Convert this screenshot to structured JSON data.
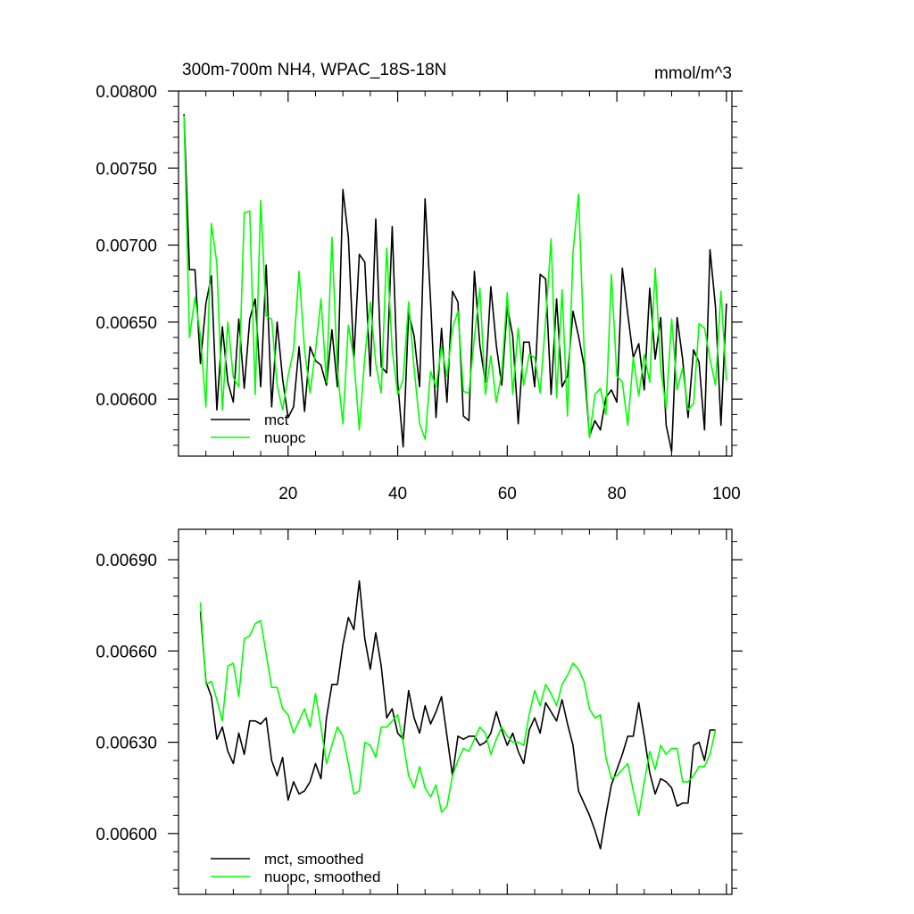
{
  "chart_data": [
    {
      "type": "line",
      "title": "300m-700m NH4, WPAC_18S-18N",
      "units": "mmol/m^3",
      "xlim": [
        0,
        101
      ],
      "ylim": [
        0.00563,
        0.008
      ],
      "xticks": [
        20,
        40,
        60,
        80,
        100
      ],
      "xtick_labels": [
        "20",
        "40",
        "60",
        "80",
        "100"
      ],
      "yticks": [
        0.006,
        0.0065,
        0.007,
        0.0075,
        0.008
      ],
      "ytick_labels": [
        "0.00600",
        "0.00650",
        "0.00700",
        "0.00750",
        "0.00800"
      ],
      "legend_position": "bottom-left",
      "series": [
        {
          "name": "mct",
          "color": "#000000",
          "x": [
            1,
            2,
            3,
            4,
            5,
            6,
            7,
            8,
            9,
            10,
            11,
            12,
            13,
            14,
            15,
            16,
            17,
            18,
            19,
            20,
            21,
            22,
            23,
            24,
            25,
            26,
            27,
            28,
            29,
            30,
            31,
            32,
            33,
            34,
            35,
            36,
            37,
            38,
            39,
            40,
            41,
            42,
            43,
            44,
            45,
            46,
            47,
            48,
            49,
            50,
            51,
            52,
            53,
            54,
            55,
            56,
            57,
            58,
            59,
            60,
            61,
            62,
            63,
            64,
            65,
            66,
            67,
            68,
            69,
            70,
            71,
            72,
            73,
            74,
            75,
            76,
            77,
            78,
            79,
            80,
            81,
            82,
            83,
            84,
            85,
            86,
            87,
            88,
            89,
            90,
            91,
            92,
            93,
            94,
            95,
            96,
            97,
            98,
            99,
            100
          ],
          "values": [
            0.00785,
            0.00684,
            0.00684,
            0.00623,
            0.00662,
            0.0068,
            0.00593,
            0.00647,
            0.00611,
            0.00598,
            0.00652,
            0.00607,
            0.00652,
            0.00665,
            0.00608,
            0.00687,
            0.00595,
            0.0065,
            0.00613,
            0.00588,
            0.00595,
            0.00634,
            0.00592,
            0.00634,
            0.00625,
            0.00622,
            0.00609,
            0.00645,
            0.00608,
            0.00736,
            0.00705,
            0.00626,
            0.00694,
            0.00689,
            0.00615,
            0.00717,
            0.00621,
            0.00617,
            0.00712,
            0.00611,
            0.00569,
            0.00656,
            0.00641,
            0.00608,
            0.0073,
            0.00664,
            0.00588,
            0.00646,
            0.00598,
            0.0067,
            0.00663,
            0.00589,
            0.00586,
            0.00683,
            0.00635,
            0.00611,
            0.00673,
            0.00635,
            0.00609,
            0.0066,
            0.00641,
            0.00584,
            0.00637,
            0.00637,
            0.00608,
            0.00681,
            0.00678,
            0.00603,
            0.00665,
            0.00608,
            0.00615,
            0.00657,
            0.00641,
            0.00622,
            0.00576,
            0.00586,
            0.0058,
            0.00601,
            0.00606,
            0.00598,
            0.00685,
            0.00655,
            0.00627,
            0.00636,
            0.00606,
            0.00672,
            0.00626,
            0.00653,
            0.00583,
            0.00566,
            0.00653,
            0.00626,
            0.00588,
            0.00632,
            0.00624,
            0.0058,
            0.00697,
            0.0066,
            0.00583,
            0.00662
          ]
        },
        {
          "name": "nuopc",
          "color": "#00ff00",
          "x": [
            1,
            2,
            3,
            4,
            5,
            6,
            7,
            8,
            9,
            10,
            11,
            12,
            13,
            14,
            15,
            16,
            17,
            18,
            19,
            20,
            21,
            22,
            23,
            24,
            25,
            26,
            27,
            28,
            29,
            30,
            31,
            32,
            33,
            34,
            35,
            36,
            37,
            38,
            39,
            40,
            41,
            42,
            43,
            44,
            45,
            46,
            47,
            48,
            49,
            50,
            51,
            52,
            53,
            54,
            55,
            56,
            57,
            58,
            59,
            60,
            61,
            62,
            63,
            64,
            65,
            66,
            67,
            68,
            69,
            70,
            71,
            72,
            73,
            74,
            75,
            76,
            77,
            78,
            79,
            80,
            81,
            82,
            83,
            84,
            85,
            86,
            87,
            88,
            89,
            90,
            91,
            92,
            93,
            94,
            95,
            96,
            97,
            98,
            99,
            100
          ],
          "values": [
            0.00784,
            0.0064,
            0.00666,
            0.00641,
            0.00595,
            0.00714,
            0.00688,
            0.00593,
            0.0065,
            0.00614,
            0.00608,
            0.00721,
            0.00722,
            0.00603,
            0.00729,
            0.00654,
            0.00652,
            0.00609,
            0.00593,
            0.00615,
            0.00632,
            0.00683,
            0.00632,
            0.00604,
            0.00631,
            0.00665,
            0.00611,
            0.00705,
            0.00618,
            0.00584,
            0.00648,
            0.00626,
            0.0058,
            0.00627,
            0.00663,
            0.00623,
            0.00604,
            0.00698,
            0.00632,
            0.00603,
            0.00613,
            0.00663,
            0.0062,
            0.00584,
            0.00574,
            0.00618,
            0.00608,
            0.00634,
            0.00615,
            0.00646,
            0.00657,
            0.00605,
            0.00604,
            0.0064,
            0.00672,
            0.00603,
            0.00628,
            0.00598,
            0.00617,
            0.00669,
            0.00603,
            0.00646,
            0.00609,
            0.00629,
            0.00627,
            0.00604,
            0.00651,
            0.00704,
            0.00601,
            0.00671,
            0.00589,
            0.00695,
            0.00733,
            0.00634,
            0.00575,
            0.00603,
            0.00607,
            0.0059,
            0.00681,
            0.00615,
            0.00611,
            0.00583,
            0.00627,
            0.00602,
            0.00629,
            0.00611,
            0.00685,
            0.0062,
            0.00594,
            0.00652,
            0.00606,
            0.0062,
            0.00593,
            0.00597,
            0.00649,
            0.00646,
            0.00626,
            0.00609,
            0.0067,
            0.00612
          ]
        }
      ]
    },
    {
      "type": "line",
      "title": "",
      "xlim": [
        0,
        101
      ],
      "ylim": [
        0.0058,
        0.007
      ],
      "xticks": [
        20,
        40,
        60,
        80,
        100
      ],
      "yticks": [
        0.006,
        0.0063,
        0.0066,
        0.0069
      ],
      "ytick_labels": [
        "0.00600",
        "0.00630",
        "0.00660",
        "0.00690"
      ],
      "legend_position": "bottom-left",
      "series": [
        {
          "name": "mct, smoothed",
          "color": "#000000",
          "x": [
            4,
            5,
            6,
            7,
            8,
            9,
            10,
            11,
            12,
            13,
            14,
            15,
            16,
            17,
            18,
            19,
            20,
            21,
            22,
            23,
            24,
            25,
            26,
            27,
            28,
            29,
            30,
            31,
            32,
            33,
            34,
            35,
            36,
            37,
            38,
            39,
            40,
            41,
            42,
            43,
            44,
            45,
            46,
            47,
            48,
            49,
            50,
            51,
            52,
            53,
            54,
            55,
            56,
            57,
            58,
            59,
            60,
            61,
            62,
            63,
            64,
            65,
            66,
            67,
            68,
            69,
            70,
            71,
            72,
            73,
            74,
            75,
            76,
            77,
            78,
            79,
            80,
            81,
            82,
            83,
            84,
            85,
            86,
            87,
            88,
            89,
            90,
            91,
            92,
            93,
            94,
            95,
            96,
            97,
            98
          ],
          "values": [
            0.00673,
            0.0065,
            0.00645,
            0.00631,
            0.00635,
            0.00627,
            0.00623,
            0.00633,
            0.00626,
            0.00637,
            0.00637,
            0.00636,
            0.00638,
            0.00624,
            0.00619,
            0.00625,
            0.00611,
            0.00617,
            0.00613,
            0.00614,
            0.00617,
            0.00623,
            0.00618,
            0.00638,
            0.00649,
            0.00649,
            0.00662,
            0.00671,
            0.00667,
            0.00683,
            0.00664,
            0.00654,
            0.00666,
            0.00655,
            0.00638,
            0.00641,
            0.00633,
            0.00631,
            0.00647,
            0.00638,
            0.00633,
            0.00642,
            0.00636,
            0.0064,
            0.00645,
            0.00632,
            0.00619,
            0.00632,
            0.00631,
            0.00632,
            0.00632,
            0.00629,
            0.0063,
            0.00633,
            0.0064,
            0.00634,
            0.00629,
            0.00633,
            0.00627,
            0.00623,
            0.00634,
            0.00638,
            0.00633,
            0.00643,
            0.0064,
            0.00637,
            0.00644,
            0.00636,
            0.00629,
            0.00614,
            0.0061,
            0.00606,
            0.00601,
            0.00595,
            0.00606,
            0.00616,
            0.00621,
            0.00626,
            0.00632,
            0.00632,
            0.00643,
            0.00632,
            0.0062,
            0.00613,
            0.00618,
            0.00617,
            0.00615,
            0.00609,
            0.0061,
            0.0061,
            0.00629,
            0.0063,
            0.00624,
            0.00634,
            0.00634
          ]
        },
        {
          "name": "nuopc, smoothed",
          "color": "#00ff00",
          "x": [
            4,
            5,
            6,
            7,
            8,
            9,
            10,
            11,
            12,
            13,
            14,
            15,
            16,
            17,
            18,
            19,
            20,
            21,
            22,
            23,
            24,
            25,
            26,
            27,
            28,
            29,
            30,
            31,
            32,
            33,
            34,
            35,
            36,
            37,
            38,
            39,
            40,
            41,
            42,
            43,
            44,
            45,
            46,
            47,
            48,
            49,
            50,
            51,
            52,
            53,
            54,
            55,
            56,
            57,
            58,
            59,
            60,
            61,
            62,
            63,
            64,
            65,
            66,
            67,
            68,
            69,
            70,
            71,
            72,
            73,
            74,
            75,
            76,
            77,
            78,
            79,
            80,
            81,
            82,
            83,
            84,
            85,
            86,
            87,
            88,
            89,
            90,
            91,
            92,
            93,
            94,
            95,
            96,
            97,
            98
          ],
          "values": [
            0.00676,
            0.00649,
            0.0065,
            0.00644,
            0.00637,
            0.00655,
            0.00656,
            0.00645,
            0.00664,
            0.00665,
            0.00669,
            0.0067,
            0.00659,
            0.00648,
            0.00648,
            0.00641,
            0.00639,
            0.00633,
            0.00637,
            0.00641,
            0.00635,
            0.00646,
            0.00635,
            0.00623,
            0.00629,
            0.00635,
            0.00632,
            0.00623,
            0.00613,
            0.00614,
            0.0063,
            0.00629,
            0.00625,
            0.00635,
            0.00635,
            0.00637,
            0.00639,
            0.0063,
            0.00619,
            0.00615,
            0.00622,
            0.00615,
            0.00612,
            0.00616,
            0.00607,
            0.00609,
            0.00619,
            0.00624,
            0.00628,
            0.00627,
            0.00631,
            0.00635,
            0.00633,
            0.00626,
            0.00631,
            0.00635,
            0.00632,
            0.0063,
            0.0063,
            0.00629,
            0.00639,
            0.00647,
            0.00642,
            0.00649,
            0.00646,
            0.00642,
            0.00649,
            0.00652,
            0.00656,
            0.00654,
            0.0065,
            0.00641,
            0.00638,
            0.00639,
            0.00625,
            0.00618,
            0.00619,
            0.00621,
            0.00623,
            0.00614,
            0.00606,
            0.00617,
            0.00627,
            0.00621,
            0.00629,
            0.00626,
            0.00628,
            0.00628,
            0.00617,
            0.00617,
            0.00619,
            0.00622,
            0.00622,
            0.00626,
            0.00634
          ]
        }
      ]
    }
  ]
}
